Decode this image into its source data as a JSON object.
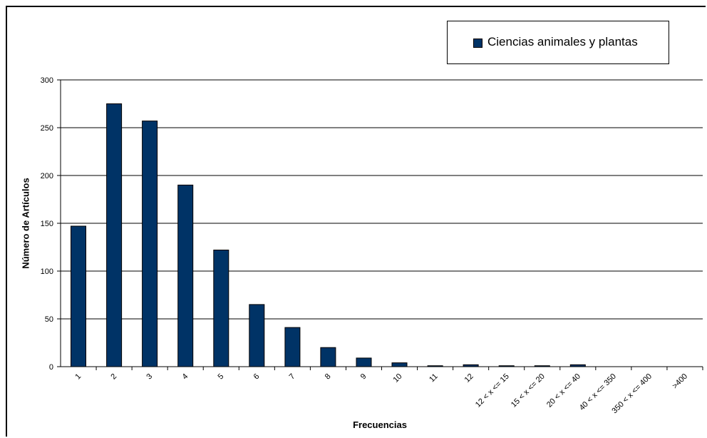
{
  "chart_data": {
    "type": "bar",
    "title": "",
    "xlabel": "Frecuencias",
    "ylabel": "Número de Artículos",
    "ylim": [
      0,
      300
    ],
    "yticks": [
      0,
      50,
      100,
      150,
      200,
      250,
      300
    ],
    "grid": true,
    "legend_position": "top-right",
    "categories": [
      "1",
      "2",
      "3",
      "4",
      "5",
      "6",
      "7",
      "8",
      "9",
      "10",
      "11",
      "12",
      "12 < x <= 15",
      "15 < x <= 20",
      "20 < x <= 40",
      "40 < x <= 350",
      "350 < x <= 400",
      ">400"
    ],
    "series": [
      {
        "name": "Ciencias animales y plantas",
        "color": "#003366",
        "values": [
          147,
          275,
          257,
          190,
          122,
          65,
          41,
          20,
          9,
          4,
          1,
          2,
          1,
          1,
          2,
          0,
          0,
          0
        ]
      }
    ]
  }
}
